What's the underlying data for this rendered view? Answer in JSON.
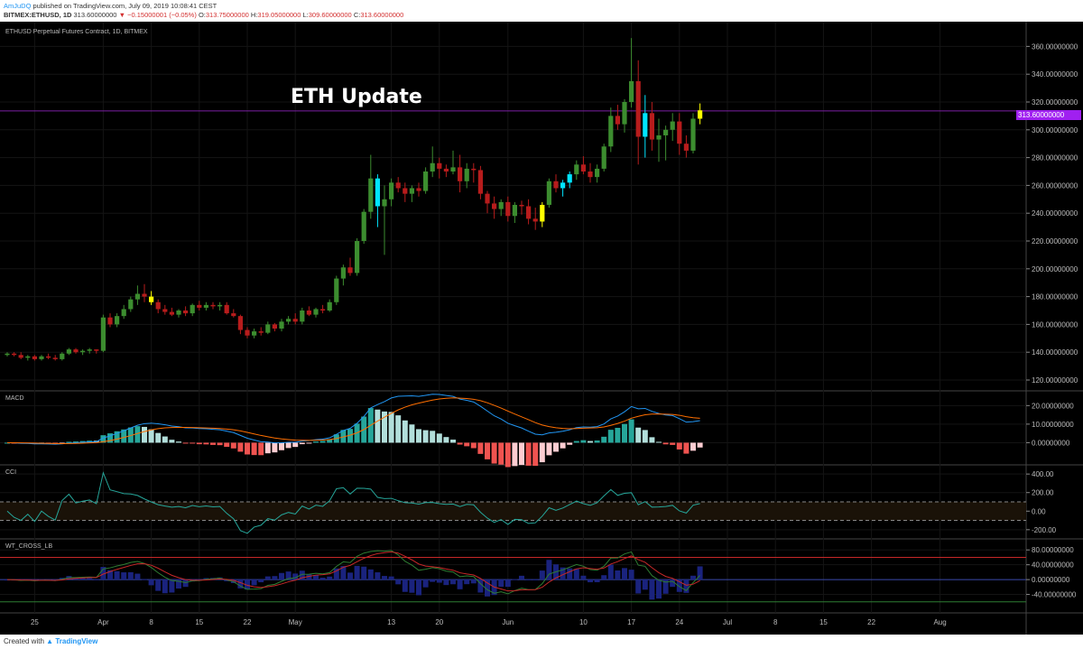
{
  "header": {
    "author": "AmJuDQ",
    "published": "published on TradingView.com, July 09, 2019 10:08:41 CEST",
    "symbol": "BITMEX:ETHUSD, 1D",
    "last_price": "313.60000000",
    "change": "−0.15000001 (−0.05%)",
    "ohlc_o_label": "O:",
    "ohlc_o": "313.75000000",
    "ohlc_h_label": "H:",
    "ohlc_h": "319.05000000",
    "ohlc_l_label": "L:",
    "ohlc_l": "309.60000000",
    "ohlc_c_label": "C:",
    "ohlc_c": "313.60000000"
  },
  "footer": {
    "created_with": "Created with",
    "brand": "TradingView"
  },
  "overlay_title": "ETH Update",
  "colors": {
    "up": "#3c8d2f",
    "down": "#b71c1c",
    "cyan": "#00e5ff",
    "yellow": "#ffff00",
    "price_line": "#7b1fa2",
    "macd_line": "#2196f3",
    "signal_line": "#ff6f00"
  },
  "chart_data": [
    {
      "type": "candlestick",
      "title": "ETHUSD Perpetual Futures Contract, 1D, BITMEX",
      "ylim": [
        120,
        370
      ],
      "y_ticks": [
        "120.00000000",
        "140.00000000",
        "160.00000000",
        "180.00000000",
        "200.00000000",
        "220.00000000",
        "240.00000000",
        "260.00000000",
        "280.00000000",
        "300.00000000",
        "320.00000000",
        "340.00000000",
        "360.00000000"
      ],
      "y_tick_values": [
        120,
        140,
        160,
        180,
        200,
        220,
        240,
        260,
        280,
        300,
        320,
        340,
        360
      ],
      "x_ticks": [
        "25",
        "Apr",
        "8",
        "15",
        "22",
        "May",
        "13",
        "20",
        "Jun",
        "10",
        "17",
        "24",
        "Jul",
        "8",
        "15",
        "22",
        "Aug"
      ],
      "x_tick_index": [
        4,
        14,
        21,
        28,
        35,
        42,
        56,
        63,
        73,
        84,
        91,
        98,
        105,
        112,
        119,
        126,
        136
      ],
      "last_price_label": "313.60000000",
      "last_price": 313.6,
      "ohlc": [
        [
          138,
          140,
          137,
          139
        ],
        [
          139,
          140,
          137,
          138
        ],
        [
          138,
          140,
          135,
          136
        ],
        [
          136,
          138,
          134,
          137
        ],
        [
          137,
          138,
          134,
          135
        ],
        [
          135,
          138,
          134,
          137
        ],
        [
          137,
          139,
          135,
          136
        ],
        [
          136,
          138,
          134,
          135
        ],
        [
          135,
          140,
          134,
          139
        ],
        [
          139,
          143,
          138,
          142
        ],
        [
          142,
          143,
          139,
          140
        ],
        [
          140,
          142,
          138,
          141
        ],
        [
          141,
          143,
          139,
          142
        ],
        [
          142,
          142,
          139,
          141
        ],
        [
          141,
          167,
          140,
          165
        ],
        [
          165,
          168,
          158,
          160
        ],
        [
          160,
          168,
          158,
          166
        ],
        [
          166,
          174,
          164,
          171
        ],
        [
          171,
          180,
          169,
          178
        ],
        [
          178,
          188,
          174,
          182
        ],
        [
          182,
          189,
          176,
          180
        ],
        [
          180,
          184,
          174,
          176
        ],
        [
          176,
          178,
          168,
          171
        ],
        [
          171,
          174,
          167,
          169
        ],
        [
          169,
          172,
          166,
          167
        ],
        [
          167,
          171,
          165,
          170
        ],
        [
          170,
          173,
          166,
          168
        ],
        [
          168,
          175,
          166,
          174
        ],
        [
          174,
          177,
          170,
          172
        ],
        [
          172,
          176,
          170,
          174
        ],
        [
          174,
          176,
          171,
          173
        ],
        [
          173,
          176,
          170,
          174
        ],
        [
          174,
          176,
          167,
          168
        ],
        [
          168,
          171,
          165,
          166
        ],
        [
          166,
          167,
          153,
          156
        ],
        [
          156,
          158,
          150,
          152
        ],
        [
          152,
          157,
          150,
          155
        ],
        [
          155,
          158,
          152,
          154
        ],
        [
          154,
          162,
          153,
          160
        ],
        [
          160,
          161,
          155,
          157
        ],
        [
          157,
          164,
          155,
          162
        ],
        [
          162,
          166,
          160,
          164
        ],
        [
          164,
          168,
          160,
          162
        ],
        [
          162,
          172,
          160,
          170
        ],
        [
          170,
          173,
          166,
          167
        ],
        [
          167,
          172,
          165,
          171
        ],
        [
          171,
          174,
          168,
          170
        ],
        [
          170,
          178,
          169,
          176
        ],
        [
          176,
          195,
          174,
          193
        ],
        [
          193,
          203,
          188,
          201
        ],
        [
          201,
          208,
          195,
          197
        ],
        [
          197,
          222,
          195,
          220
        ],
        [
          220,
          243,
          218,
          241
        ],
        [
          241,
          282,
          236,
          265
        ],
        [
          265,
          268,
          230,
          245
        ],
        [
          245,
          260,
          210,
          250
        ],
        [
          250,
          265,
          245,
          262
        ],
        [
          262,
          266,
          255,
          258
        ],
        [
          258,
          262,
          248,
          254
        ],
        [
          254,
          260,
          248,
          258
        ],
        [
          258,
          262,
          252,
          256
        ],
        [
          256,
          273,
          254,
          270
        ],
        [
          270,
          288,
          266,
          276
        ],
        [
          276,
          280,
          265,
          272
        ],
        [
          272,
          275,
          266,
          270
        ],
        [
          270,
          285,
          268,
          273
        ],
        [
          273,
          282,
          255,
          263
        ],
        [
          263,
          276,
          258,
          272
        ],
        [
          272,
          276,
          262,
          271
        ],
        [
          271,
          274,
          250,
          254
        ],
        [
          254,
          256,
          240,
          247
        ],
        [
          247,
          252,
          236,
          243
        ],
        [
          243,
          250,
          238,
          248
        ],
        [
          248,
          252,
          234,
          238
        ],
        [
          238,
          248,
          233,
          246
        ],
        [
          246,
          249,
          239,
          245
        ],
        [
          245,
          250,
          232,
          236
        ],
        [
          236,
          244,
          228,
          234
        ],
        [
          234,
          248,
          230,
          246
        ],
        [
          246,
          265,
          244,
          263
        ],
        [
          263,
          268,
          255,
          258
        ],
        [
          258,
          264,
          252,
          262
        ],
        [
          262,
          270,
          258,
          268
        ],
        [
          268,
          278,
          264,
          275
        ],
        [
          275,
          281,
          268,
          270
        ],
        [
          270,
          276,
          262,
          266
        ],
        [
          266,
          275,
          262,
          272
        ],
        [
          272,
          290,
          270,
          288
        ],
        [
          288,
          316,
          284,
          310
        ],
        [
          310,
          318,
          300,
          304
        ],
        [
          304,
          322,
          298,
          320
        ],
        [
          320,
          366,
          316,
          335
        ],
        [
          335,
          350,
          275,
          295
        ],
        [
          295,
          325,
          280,
          312
        ],
        [
          312,
          320,
          285,
          293
        ],
        [
          293,
          308,
          277,
          296
        ],
        [
          296,
          303,
          278,
          300
        ],
        [
          300,
          312,
          292,
          306
        ],
        [
          306,
          312,
          282,
          290
        ],
        [
          290,
          296,
          280,
          285
        ],
        [
          285,
          312,
          283,
          308
        ],
        [
          308,
          319,
          304,
          314
        ]
      ],
      "highlight": {
        "cyan": [
          54,
          81,
          82,
          93
        ],
        "yellow": [
          21,
          78,
          101
        ]
      }
    },
    {
      "type": "line",
      "title": "MACD",
      "ylim": [
        -10,
        26
      ],
      "y_ticks": [
        "0.00000000",
        "10.00000000",
        "20.00000000"
      ],
      "y_tick_values": [
        0,
        10,
        20
      ]
    },
    {
      "type": "line",
      "title": "CCI",
      "ylim": [
        -260,
        460
      ],
      "y_ticks": [
        "-200.00",
        "0.00",
        "200.00",
        "400.00"
      ],
      "y_tick_values": [
        -200,
        0,
        200,
        400
      ],
      "bands": [
        100,
        -100
      ]
    },
    {
      "type": "line",
      "title": "WT_CROSS_LB",
      "ylim": [
        -80,
        100
      ],
      "y_ticks": [
        "-40.00000000",
        "0.00000000",
        "40.00000000",
        "80.00000000"
      ],
      "y_tick_values": [
        -40,
        0,
        40,
        80
      ]
    }
  ]
}
